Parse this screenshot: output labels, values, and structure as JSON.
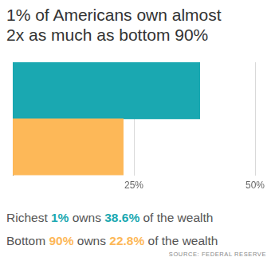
{
  "chart_data": {
    "type": "bar",
    "orientation": "horizontal",
    "title": "1% of Americans own almost 2x as much as bottom 90%",
    "categories": [
      null,
      null
    ],
    "values": [
      38.6,
      22.8
    ],
    "colors": [
      "#1aa8b1",
      "#fdb858"
    ],
    "xlim": [
      0,
      50
    ],
    "xticks": [
      {
        "value": 25,
        "label": "25%"
      },
      {
        "value": 50,
        "label": "50%"
      }
    ],
    "grid": true,
    "annotations": [
      "Richest 1% owns 38.6% of the wealth",
      "Bottom 90% owns 22.8% of the wealth"
    ],
    "source": "SOURCE: FEDERAL RESERVE"
  }
}
